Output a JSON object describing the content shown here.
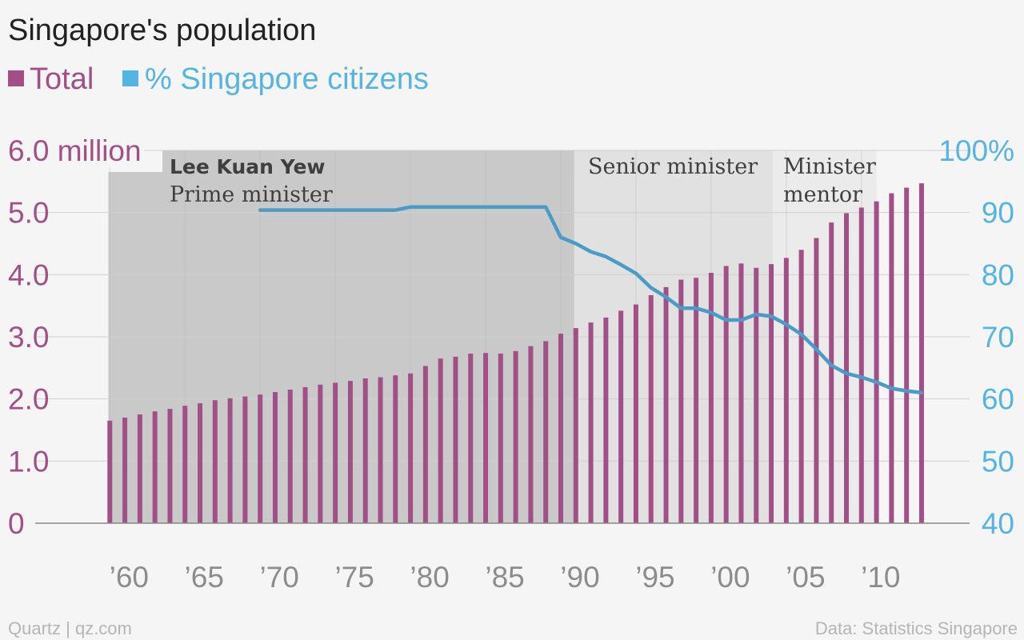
{
  "chart_data": {
    "type": "bar+line",
    "title": "Singapore's population",
    "colors": {
      "total": "#a34f87",
      "citizens": "#4a9bc6",
      "left_axis": "#a34f87",
      "right_axis": "#56b4e3"
    },
    "legend": {
      "placement": "top-left",
      "items": [
        {
          "key": "total",
          "label": "Total",
          "color": "#a34f87"
        },
        {
          "key": "citizens",
          "label": "% Singapore citizens",
          "color": "#56b4e3"
        }
      ]
    },
    "x": [
      1960,
      1961,
      1962,
      1963,
      1964,
      1965,
      1966,
      1967,
      1968,
      1969,
      1970,
      1971,
      1972,
      1973,
      1974,
      1975,
      1976,
      1977,
      1978,
      1979,
      1980,
      1981,
      1982,
      1983,
      1984,
      1985,
      1986,
      1987,
      1988,
      1989,
      1990,
      1991,
      1992,
      1993,
      1994,
      1995,
      1996,
      1997,
      1998,
      1999,
      2000,
      2001,
      2002,
      2003,
      2004,
      2005,
      2006,
      2007,
      2008,
      2009,
      2010,
      2011,
      2012,
      2013,
      2014
    ],
    "x_tick_labels": [
      "’60",
      "’65",
      "’70",
      "’75",
      "’80",
      "’85",
      "’90",
      "’95",
      "’00",
      "’05",
      "’10"
    ],
    "x_tick_years": [
      1960,
      1965,
      1970,
      1975,
      1980,
      1985,
      1990,
      1995,
      2000,
      2005,
      2010
    ],
    "series": [
      {
        "key": "total",
        "name": "Total",
        "axis": "left",
        "kind": "bar",
        "values": [
          1.65,
          1.7,
          1.75,
          1.8,
          1.84,
          1.89,
          1.93,
          1.98,
          2.01,
          2.04,
          2.07,
          2.11,
          2.15,
          2.19,
          2.23,
          2.26,
          2.29,
          2.33,
          2.35,
          2.38,
          2.41,
          2.53,
          2.65,
          2.68,
          2.73,
          2.74,
          2.73,
          2.77,
          2.85,
          2.93,
          3.05,
          3.14,
          3.23,
          3.31,
          3.42,
          3.52,
          3.67,
          3.8,
          3.92,
          3.95,
          4.03,
          4.14,
          4.18,
          4.11,
          4.17,
          4.27,
          4.4,
          4.59,
          4.84,
          4.99,
          5.08,
          5.18,
          5.31,
          5.4,
          5.47
        ]
      },
      {
        "key": "citizens",
        "name": "% Singapore citizens",
        "axis": "right",
        "kind": "line",
        "points": [
          [
            1970,
            90.4
          ],
          [
            1971,
            90.4
          ],
          [
            1972,
            90.4
          ],
          [
            1973,
            90.4
          ],
          [
            1974,
            90.4
          ],
          [
            1975,
            90.4
          ],
          [
            1976,
            90.4
          ],
          [
            1977,
            90.4
          ],
          [
            1978,
            90.4
          ],
          [
            1979,
            90.4
          ],
          [
            1980,
            90.9
          ],
          [
            1981,
            90.9
          ],
          [
            1982,
            90.9
          ],
          [
            1983,
            90.9
          ],
          [
            1984,
            90.9
          ],
          [
            1985,
            90.9
          ],
          [
            1986,
            90.9
          ],
          [
            1987,
            90.9
          ],
          [
            1988,
            90.9
          ],
          [
            1989,
            90.9
          ],
          [
            1990,
            86.0
          ],
          [
            1991,
            85.0
          ],
          [
            1992,
            83.7
          ],
          [
            1993,
            82.9
          ],
          [
            1994,
            81.6
          ],
          [
            1995,
            80.2
          ],
          [
            1996,
            77.9
          ],
          [
            1997,
            76.4
          ],
          [
            1998,
            74.6
          ],
          [
            1999,
            74.6
          ],
          [
            2000,
            73.9
          ],
          [
            2001,
            72.7
          ],
          [
            2002,
            72.7
          ],
          [
            2003,
            73.6
          ],
          [
            2004,
            73.3
          ],
          [
            2005,
            72.0
          ],
          [
            2006,
            70.4
          ],
          [
            2007,
            68.0
          ],
          [
            2008,
            65.4
          ],
          [
            2009,
            64.1
          ],
          [
            2010,
            63.5
          ],
          [
            2011,
            62.7
          ],
          [
            2012,
            61.7
          ],
          [
            2013,
            61.3
          ],
          [
            2014,
            61.0
          ]
        ]
      }
    ],
    "left_axis": {
      "ylim": [
        0,
        6.0
      ],
      "ticks": [
        0,
        1,
        2,
        3,
        4,
        5,
        6
      ],
      "tick_labels": [
        "0",
        "1.0",
        "2.0",
        "3.0",
        "4.0",
        "5.0",
        "6.0 million"
      ]
    },
    "right_axis": {
      "ylim": [
        40,
        100
      ],
      "ticks": [
        40,
        50,
        60,
        70,
        80,
        90,
        100
      ],
      "tick_labels": [
        "40",
        "50",
        "60",
        "70",
        "80",
        "90",
        "100%"
      ]
    },
    "eras": [
      {
        "name": "Lee Kuan Yew",
        "role": "Prime minister",
        "start": 1959.9,
        "end": 1990.9,
        "shade": "#c9c9c9"
      },
      {
        "name": "",
        "role": "Senior minister",
        "start": 1990.9,
        "end": 2004.1,
        "shade": "#e1e1e1"
      },
      {
        "name": "",
        "role": "Minister mentor",
        "start": 2004.1,
        "end": 2011.0,
        "shade": "#ebebeb"
      }
    ],
    "grid": true,
    "source": "Data: Statistics Singapore",
    "credit": "Quartz | qz.com"
  }
}
